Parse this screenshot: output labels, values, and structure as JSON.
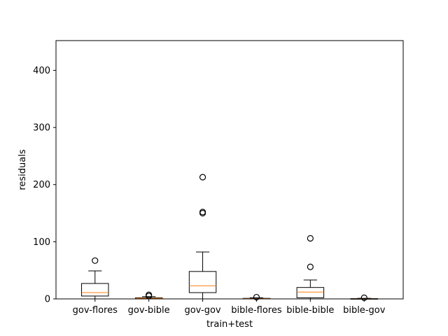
{
  "chart_data": {
    "type": "box",
    "title": "",
    "xlabel": "train+test",
    "ylabel": "residuals",
    "ylim": [
      0,
      452
    ],
    "yticks": [
      0,
      100,
      200,
      300,
      400
    ],
    "grid": false,
    "colors": {
      "box": "#000000",
      "median": "#ff7f0e",
      "outlier": "#000000",
      "background": "#ffffff"
    },
    "categories": [
      "gov-flores",
      "gov-bible",
      "gov-gov",
      "bible-flores",
      "bible-bible",
      "bible-gov"
    ],
    "boxes": [
      {
        "label": "gov-flores",
        "whisker_low": 0,
        "q1": 5,
        "median": 11,
        "q3": 27,
        "whisker_high": 49,
        "outliers": [
          67
        ]
      },
      {
        "label": "gov-bible",
        "whisker_low": 0,
        "q1": 0.3,
        "median": 1,
        "q3": 2,
        "whisker_high": 4,
        "outliers": [
          5,
          7
        ]
      },
      {
        "label": "gov-gov",
        "whisker_low": 0,
        "q1": 11,
        "median": 23,
        "q3": 48,
        "whisker_high": 82,
        "outliers": [
          150,
          152,
          213
        ]
      },
      {
        "label": "bible-flores",
        "whisker_low": 0,
        "q1": 0,
        "median": 0.5,
        "q3": 1,
        "whisker_high": 2,
        "outliers": [
          3
        ]
      },
      {
        "label": "bible-bible",
        "whisker_low": 0,
        "q1": 2,
        "median": 12,
        "q3": 20,
        "whisker_high": 33,
        "outliers": [
          56,
          106
        ]
      },
      {
        "label": "bible-gov",
        "whisker_low": 0,
        "q1": 0,
        "median": 0.2,
        "q3": 0.5,
        "whisker_high": 1,
        "outliers": [
          2
        ]
      }
    ]
  }
}
